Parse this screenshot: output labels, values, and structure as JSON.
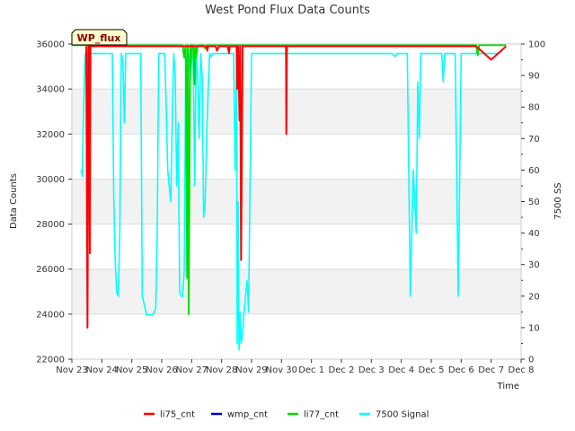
{
  "chart_data": {
    "type": "line",
    "title": "West Pond Flux Data Counts",
    "xlabel": "Time",
    "ylabel": "Data Counts",
    "y2label": "7500 SS",
    "badge": "WP_flux",
    "ylim": [
      22000,
      36000
    ],
    "y2lim": [
      0,
      100
    ],
    "xlim": [
      "Nov 23",
      "Dec 8"
    ],
    "x_ticks": [
      "Nov 23",
      "Nov 24",
      "Nov 25",
      "Nov 26",
      "Nov 27",
      "Nov 28",
      "Nov 29",
      "Nov 30",
      "Dec 1",
      "Dec 2",
      "Dec 3",
      "Dec 4",
      "Dec 5",
      "Dec 6",
      "Dec 7",
      "Dec 8"
    ],
    "y_ticks": [
      22000,
      24000,
      26000,
      28000,
      30000,
      32000,
      34000,
      36000
    ],
    "y2_ticks": [
      0,
      10,
      20,
      30,
      40,
      50,
      60,
      70,
      80,
      90,
      100
    ],
    "grid": "horizontal alternating bands",
    "legend_position": "bottom",
    "series": [
      {
        "name": "li75_cnt",
        "color": "#ff0000",
        "axis": "left",
        "x": [
          0.48,
          0.52,
          0.53,
          0.55,
          0.58,
          0.6,
          0.62,
          3.95,
          4.0,
          4.05,
          4.1,
          4.3,
          4.4,
          4.45,
          4.5,
          4.52,
          4.55,
          4.6,
          4.7,
          4.8,
          4.85,
          4.9,
          5.0,
          5.2,
          5.25,
          5.27,
          5.3,
          5.5,
          5.52,
          5.55,
          5.6,
          5.62,
          5.65,
          5.7,
          5.75,
          6.5,
          7.15,
          7.16,
          7.18,
          7.2,
          7.22,
          7.5,
          13.5,
          14.0,
          14.5
        ],
        "y": [
          35900,
          23400,
          26500,
          35900,
          35900,
          26700,
          35900,
          35900,
          35900,
          35900,
          35900,
          35900,
          35900,
          35900,
          35900,
          35700,
          35900,
          35900,
          35900,
          35900,
          35700,
          35900,
          35900,
          35900,
          35600,
          35900,
          35900,
          35900,
          34000,
          35900,
          32600,
          35900,
          26400,
          35900,
          35900,
          35900,
          35900,
          32000,
          35900,
          35900,
          35900,
          35900,
          35900,
          35300,
          35900
        ]
      },
      {
        "name": "wmp_cnt",
        "color": "#0000cc",
        "axis": "left",
        "x": [],
        "y": []
      },
      {
        "name": "li77_cnt",
        "color": "#00dd00",
        "axis": "left",
        "x": [
          0,
          3.7,
          3.75,
          3.8,
          3.85,
          3.87,
          3.9,
          3.95,
          3.97,
          4.0,
          4.05,
          4.1,
          4.12,
          4.15,
          4.2,
          4.3,
          4.4,
          4.45,
          4.5,
          4.6,
          13.5,
          13.55,
          13.6,
          13.65,
          14.5
        ],
        "y": [
          35950,
          35950,
          35400,
          35950,
          25600,
          35950,
          24000,
          35950,
          35000,
          35950,
          35950,
          34200,
          35950,
          35400,
          35950,
          35950,
          35950,
          35800,
          35950,
          35950,
          35950,
          35500,
          35950,
          35950,
          35950
        ]
      },
      {
        "name": "7500 Signal",
        "color": "#00ffff",
        "axis": "right",
        "x": [
          0.3,
          0.35,
          0.38,
          0.42,
          0.45,
          0.5,
          0.52,
          0.55,
          0.58,
          0.6,
          0.7,
          1.0,
          1.2,
          1.35,
          1.4,
          1.45,
          1.5,
          1.55,
          1.6,
          1.65,
          1.7,
          1.75,
          1.8,
          2.0,
          2.1,
          2.2,
          2.25,
          2.3,
          2.35,
          2.5,
          2.7,
          2.8,
          2.85,
          2.9,
          3.0,
          3.1,
          3.15,
          3.2,
          3.25,
          3.3,
          3.4,
          3.45,
          3.5,
          3.55,
          3.6,
          3.65,
          3.7,
          3.75,
          3.8,
          3.85,
          3.9,
          3.95,
          4.0,
          4.05,
          4.1,
          4.15,
          4.2,
          4.25,
          4.3,
          4.35,
          4.4,
          4.45,
          4.5,
          4.55,
          4.6,
          4.65,
          4.7,
          4.75,
          4.8,
          4.85,
          4.9,
          5.0,
          5.2,
          5.3,
          5.4,
          5.45,
          5.5,
          5.52,
          5.55,
          5.58,
          5.6,
          5.62,
          5.65,
          5.7,
          5.75,
          5.8,
          5.85,
          5.9,
          6.0,
          6.3,
          6.6,
          6.9,
          7.1,
          7.15,
          7.2,
          7.3,
          7.4,
          7.5,
          7.55,
          7.6,
          7.7,
          7.8,
          8.0,
          8.5,
          9.0,
          9.3,
          9.35,
          9.4,
          9.5,
          10.0,
          10.5,
          10.6,
          10.7,
          10.8,
          10.85,
          10.9,
          10.95,
          11.0,
          11.1,
          11.2,
          11.3,
          11.4,
          11.5,
          11.55,
          11.6,
          11.65,
          11.7,
          11.75,
          11.8,
          11.85,
          11.9,
          11.95,
          12.0,
          12.05,
          12.1,
          12.2,
          12.35,
          12.4,
          12.45,
          12.5,
          12.55,
          12.6,
          12.65,
          12.7,
          12.8,
          12.9,
          13.0,
          13.05,
          13.1,
          13.15,
          13.2,
          13.3,
          13.4,
          13.45,
          13.5,
          13.55,
          13.6,
          13.7,
          13.8,
          13.9,
          14.0,
          14.2,
          14.4
        ],
        "y": [
          60,
          58,
          75,
          90,
          97,
          97,
          88,
          97,
          97,
          97,
          97,
          97,
          97,
          97,
          50,
          30,
          21,
          20,
          40,
          97,
          95,
          75,
          97,
          97,
          97,
          97,
          97,
          97,
          20,
          14,
          14,
          16,
          40,
          97,
          97,
          97,
          80,
          60,
          55,
          50,
          97,
          90,
          55,
          75,
          21,
          20,
          20,
          28,
          90,
          96,
          97,
          88,
          95,
          97,
          55,
          97,
          90,
          70,
          97,
          90,
          45,
          50,
          70,
          85,
          97,
          96,
          97,
          97,
          97,
          97,
          97,
          97,
          97,
          97,
          97,
          60,
          97,
          5,
          50,
          3,
          8,
          15,
          5,
          8,
          15,
          20,
          25,
          15,
          97,
          97,
          97,
          97,
          97,
          97,
          97,
          97,
          97,
          97,
          97,
          97,
          97,
          97,
          97,
          97,
          97,
          97,
          97,
          97,
          97,
          97,
          97,
          97,
          97,
          96,
          97,
          97,
          97,
          97,
          97,
          97,
          20,
          60,
          40,
          88,
          70,
          97,
          97,
          97,
          97,
          97,
          97,
          97,
          97,
          97,
          97,
          97,
          97,
          88,
          97,
          97,
          97,
          97,
          97,
          97,
          97,
          20,
          97,
          97,
          97,
          97,
          97,
          97,
          97,
          97,
          97,
          97,
          97,
          97,
          97,
          97,
          97,
          97,
          98
        ]
      }
    ]
  }
}
